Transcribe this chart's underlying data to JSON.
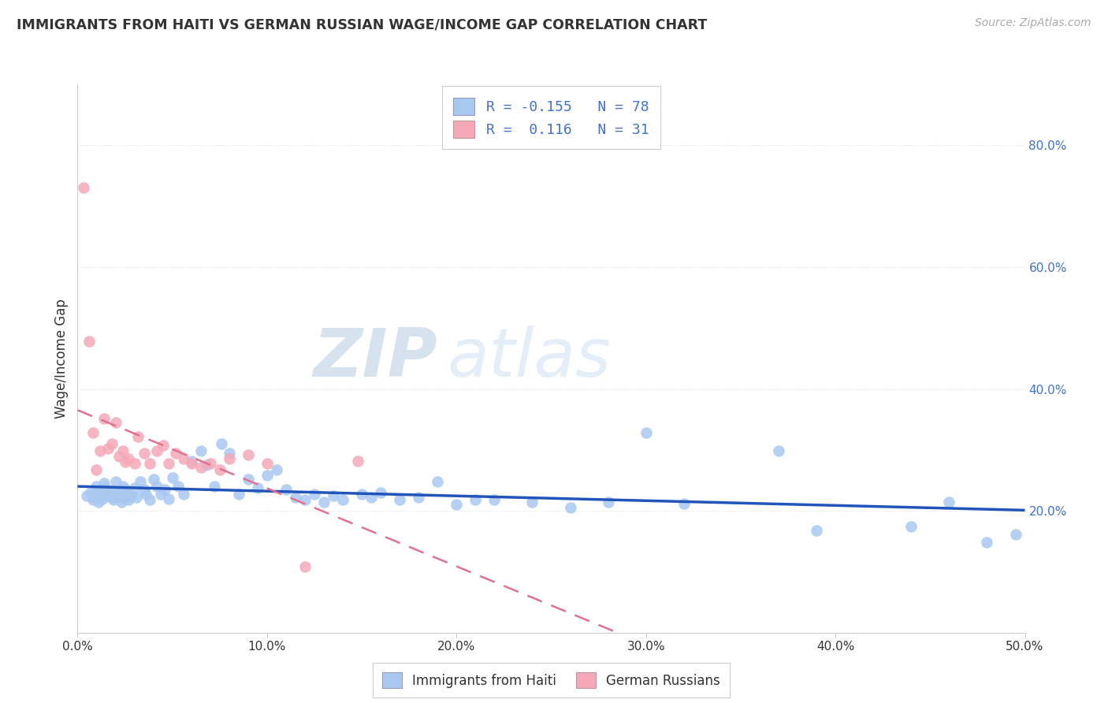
{
  "title": "IMMIGRANTS FROM HAITI VS GERMAN RUSSIAN WAGE/INCOME GAP CORRELATION CHART",
  "source": "Source: ZipAtlas.com",
  "ylabel": "Wage/Income Gap",
  "ytick_vals": [
    0.2,
    0.4,
    0.6,
    0.8
  ],
  "ytick_labels": [
    "20.0%",
    "40.0%",
    "60.0%",
    "80.0%"
  ],
  "xlim": [
    0.0,
    0.5
  ],
  "ylim": [
    0.0,
    0.9
  ],
  "legend_haiti": "Immigrants from Haiti",
  "legend_german": "German Russians",
  "R_haiti": -0.155,
  "N_haiti": 78,
  "R_german": 0.116,
  "N_german": 31,
  "haiti_color": "#a8c8f0",
  "german_color": "#f5a8b8",
  "haiti_line_color": "#2255bb",
  "german_line_color": "#e07090",
  "haiti_points_x": [
    0.005,
    0.007,
    0.008,
    0.009,
    0.01,
    0.01,
    0.011,
    0.012,
    0.013,
    0.014,
    0.015,
    0.016,
    0.017,
    0.018,
    0.019,
    0.02,
    0.02,
    0.021,
    0.022,
    0.023,
    0.024,
    0.025,
    0.025,
    0.026,
    0.027,
    0.028,
    0.03,
    0.031,
    0.033,
    0.035,
    0.036,
    0.038,
    0.04,
    0.042,
    0.044,
    0.046,
    0.048,
    0.05,
    0.053,
    0.056,
    0.06,
    0.065,
    0.068,
    0.072,
    0.076,
    0.08,
    0.085,
    0.09,
    0.095,
    0.1,
    0.105,
    0.11,
    0.115,
    0.12,
    0.125,
    0.13,
    0.135,
    0.14,
    0.15,
    0.155,
    0.16,
    0.17,
    0.18,
    0.19,
    0.2,
    0.21,
    0.22,
    0.24,
    0.26,
    0.28,
    0.3,
    0.32,
    0.37,
    0.39,
    0.44,
    0.46,
    0.48,
    0.495
  ],
  "haiti_points_y": [
    0.225,
    0.23,
    0.218,
    0.222,
    0.228,
    0.24,
    0.215,
    0.235,
    0.22,
    0.245,
    0.238,
    0.225,
    0.23,
    0.222,
    0.218,
    0.248,
    0.232,
    0.222,
    0.23,
    0.215,
    0.24,
    0.235,
    0.22,
    0.228,
    0.218,
    0.225,
    0.238,
    0.222,
    0.248,
    0.235,
    0.228,
    0.218,
    0.252,
    0.24,
    0.228,
    0.235,
    0.22,
    0.255,
    0.24,
    0.228,
    0.282,
    0.298,
    0.275,
    0.24,
    0.31,
    0.295,
    0.228,
    0.252,
    0.238,
    0.258,
    0.268,
    0.235,
    0.222,
    0.218,
    0.228,
    0.215,
    0.225,
    0.218,
    0.228,
    0.222,
    0.23,
    0.218,
    0.222,
    0.248,
    0.21,
    0.218,
    0.218,
    0.215,
    0.205,
    0.215,
    0.328,
    0.212,
    0.298,
    0.168,
    0.175,
    0.215,
    0.148,
    0.162
  ],
  "german_points_x": [
    0.003,
    0.006,
    0.008,
    0.01,
    0.012,
    0.014,
    0.016,
    0.018,
    0.02,
    0.022,
    0.024,
    0.025,
    0.027,
    0.03,
    0.032,
    0.035,
    0.038,
    0.042,
    0.045,
    0.048,
    0.052,
    0.056,
    0.06,
    0.065,
    0.07,
    0.075,
    0.08,
    0.09,
    0.1,
    0.12,
    0.148
  ],
  "german_points_y": [
    0.73,
    0.478,
    0.328,
    0.268,
    0.298,
    0.352,
    0.302,
    0.31,
    0.345,
    0.29,
    0.298,
    0.28,
    0.285,
    0.278,
    0.322,
    0.295,
    0.278,
    0.298,
    0.308,
    0.278,
    0.295,
    0.285,
    0.278,
    0.272,
    0.278,
    0.268,
    0.285,
    0.292,
    0.278,
    0.108,
    0.282
  ],
  "background_color": "#ffffff",
  "grid_color": "#e0e0e0",
  "axis_color": "#cccccc",
  "text_color": "#333333",
  "blue_color": "#4472c4"
}
